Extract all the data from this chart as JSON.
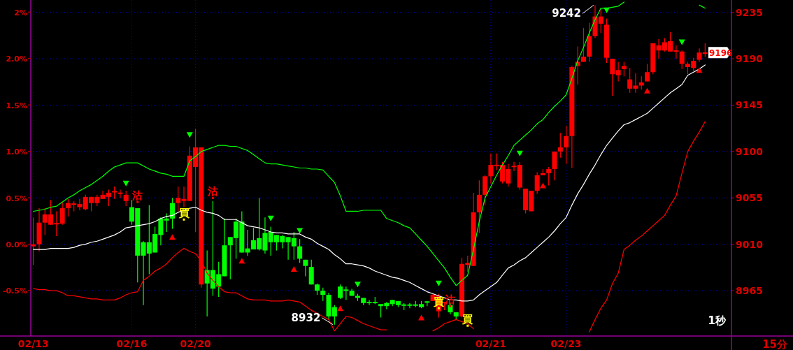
{
  "chart_data": {
    "type": "candlestick",
    "categories": [
      "02/13",
      null,
      null,
      null,
      null,
      null,
      null,
      null,
      null,
      null,
      null,
      null,
      null,
      null,
      null,
      null,
      null,
      "02/16",
      null,
      null,
      null,
      null,
      null,
      null,
      null,
      null,
      null,
      null,
      "02/20",
      null,
      null,
      null,
      null,
      null,
      null,
      null,
      null,
      null,
      null,
      null,
      null,
      null,
      null,
      null,
      null,
      null,
      null,
      null,
      null,
      null,
      null,
      null,
      null,
      null,
      null,
      null,
      null,
      null,
      null,
      null,
      null,
      null,
      null,
      null,
      null,
      null,
      null,
      null,
      null,
      null,
      null,
      null,
      null,
      null,
      null,
      null,
      null,
      null,
      null,
      "02/21",
      null,
      null,
      null,
      null,
      null,
      null,
      null,
      null,
      null,
      null,
      null,
      null,
      "02/23",
      null,
      null,
      null,
      null,
      null,
      null,
      null,
      null,
      null,
      null,
      null,
      null,
      null,
      null,
      null,
      null,
      null,
      null,
      null,
      null,
      null,
      null,
      null,
      null
    ],
    "ohlc": [
      [
        9008,
        9036,
        8990,
        9010
      ],
      [
        9010,
        9045,
        9003,
        9031
      ],
      [
        9031,
        9045,
        9019,
        9039
      ],
      [
        9029,
        9053,
        9029,
        9039
      ],
      [
        9030,
        9042,
        9018,
        9030
      ],
      [
        9030,
        9051,
        9029,
        9045
      ],
      [
        9045,
        9054,
        9037,
        9050
      ],
      [
        9049,
        9052,
        9042,
        9049
      ],
      [
        9046,
        9054,
        9043,
        9049
      ],
      [
        9044,
        9058,
        9043,
        9056
      ],
      [
        9050,
        9056,
        9042,
        9056
      ],
      [
        9050,
        9058,
        9047,
        9056
      ],
      [
        9054,
        9062,
        9054,
        9058
      ],
      [
        9056,
        9063,
        9047,
        9060
      ],
      [
        9061,
        9066,
        9054,
        9061
      ],
      [
        9059,
        9063,
        9055,
        9060
      ],
      [
        9052,
        9062,
        9047,
        9058
      ],
      [
        9046,
        9053,
        9029,
        9032
      ],
      [
        9045,
        9045,
        8973,
        8999
      ],
      [
        9012,
        9013,
        8951,
        8999
      ],
      [
        9012,
        9048,
        8981,
        9001
      ],
      [
        9020,
        9027,
        9002,
        9002
      ],
      [
        9035,
        9036,
        9009,
        9019
      ],
      [
        9035,
        9040,
        9022,
        9033
      ],
      [
        9050,
        9055,
        9025,
        9035
      ],
      [
        9050,
        9066,
        9042,
        9055
      ],
      [
        9052,
        9066,
        9046,
        9054
      ],
      [
        9052,
        9105,
        9052,
        9096
      ],
      [
        9085,
        9122,
        9022,
        9104
      ],
      [
        8971,
        9104,
        8968,
        9104
      ],
      [
        8985,
        9004,
        8940,
        8972
      ],
      [
        8985,
        9052,
        8960,
        8967
      ],
      [
        8981,
        8993,
        8959,
        8969
      ],
      [
        9009,
        9035,
        8979,
        8979
      ],
      [
        9017,
        9017,
        8976,
        9009
      ],
      [
        9032,
        9035,
        8996,
        9016
      ],
      [
        9032,
        9042,
        9002,
        9002
      ],
      [
        9006,
        9024,
        8999,
        9002
      ],
      [
        9014,
        9026,
        9005,
        9005
      ],
      [
        9016,
        9055,
        9004,
        9005
      ],
      [
        9021,
        9036,
        9001,
        9004
      ],
      [
        9022,
        9027,
        8999,
        9012
      ],
      [
        9019,
        9019,
        9004,
        9012
      ],
      [
        9018,
        9019,
        9006,
        9012
      ],
      [
        9017,
        9017,
        8995,
        9012
      ],
      [
        9016,
        9022,
        8995,
        9008
      ],
      [
        9008,
        9015,
        8992,
        8996
      ],
      [
        8995,
        8995,
        8979,
        8989
      ],
      [
        8988,
        8995,
        8971,
        8971
      ],
      [
        8971,
        8972,
        8961,
        8965
      ],
      [
        8965,
        8968,
        8955,
        8961
      ],
      [
        8961,
        8963,
        8937,
        8940
      ],
      [
        8949,
        8951,
        8932,
        8940
      ],
      [
        8969,
        8971,
        8957,
        8958
      ],
      [
        8966,
        8969,
        8956,
        8965
      ],
      [
        8965,
        8967,
        8960,
        8960
      ],
      [
        8960,
        8962,
        8955,
        8958
      ],
      [
        8958,
        8958,
        8951,
        8953
      ],
      [
        8954,
        8956,
        8951,
        8953
      ],
      [
        8954,
        8959,
        8952,
        8953
      ],
      [
        8952,
        8952,
        8939,
        8950
      ],
      [
        8953,
        8954,
        8947,
        8950
      ],
      [
        8956,
        8956,
        8950,
        8952
      ],
      [
        8955,
        8955,
        8949,
        8951
      ],
      [
        8951,
        8953,
        8946,
        8951
      ],
      [
        8951,
        8953,
        8948,
        8951
      ],
      [
        8951,
        8955,
        8949,
        8951
      ],
      [
        8952,
        8955,
        8948,
        8949
      ],
      [
        8954,
        8955,
        8950,
        8954
      ],
      [
        8955,
        8962,
        8955,
        8961
      ],
      [
        8945,
        8962,
        8939,
        8960
      ],
      [
        8953,
        8954,
        8946,
        8954
      ],
      [
        8951,
        8953,
        8942,
        8944
      ],
      [
        8944,
        8944,
        8937,
        8940
      ],
      [
        8940,
        8997,
        8939,
        8991
      ],
      [
        8990,
        8999,
        8983,
        8992
      ],
      [
        8989,
        9060,
        8989,
        9041
      ],
      [
        9041,
        9072,
        9021,
        9058
      ],
      [
        9058,
        9077,
        9048,
        9076
      ],
      [
        9076,
        9098,
        9069,
        9087
      ],
      [
        9086,
        9098,
        9082,
        9087
      ],
      [
        9071,
        9090,
        9069,
        9087
      ],
      [
        9069,
        9088,
        9066,
        9083
      ],
      [
        9085,
        9090,
        9081,
        9086
      ],
      [
        9065,
        9090,
        9063,
        9087
      ],
      [
        9043,
        9064,
        9040,
        9064
      ],
      [
        9042,
        9062,
        9042,
        9062
      ],
      [
        9062,
        9080,
        9059,
        9077
      ],
      [
        9077,
        9083,
        9077,
        9079
      ],
      [
        9079,
        9085,
        9067,
        9083
      ],
      [
        9083,
        9100,
        9072,
        9100
      ],
      [
        9100,
        9118,
        9094,
        9104
      ],
      [
        9104,
        9125,
        9088,
        9115
      ],
      [
        9115,
        9183,
        9084,
        9182
      ],
      [
        9183,
        9202,
        9165,
        9187
      ],
      [
        9187,
        9220,
        9187,
        9192
      ],
      [
        9192,
        9225,
        9187,
        9212
      ],
      [
        9212,
        9242,
        9210,
        9231
      ],
      [
        9224,
        9238,
        9215,
        9231
      ],
      [
        9191,
        9229,
        9186,
        9223
      ],
      [
        9175,
        9190,
        9154,
        9190
      ],
      [
        9174,
        9187,
        9168,
        9179
      ],
      [
        9180,
        9187,
        9173,
        9183
      ],
      [
        9161,
        9181,
        9157,
        9170
      ],
      [
        9161,
        9176,
        9157,
        9164
      ],
      [
        9164,
        9173,
        9160,
        9167
      ],
      [
        9168,
        9185,
        9168,
        9177
      ],
      [
        9177,
        9205,
        9175,
        9205
      ],
      [
        9198,
        9209,
        9190,
        9203
      ],
      [
        9198,
        9210,
        9197,
        9206
      ],
      [
        9197,
        9216,
        9197,
        9207
      ],
      [
        9197,
        9203,
        9190,
        9198
      ],
      [
        9185,
        9198,
        9180,
        9197
      ],
      [
        9182,
        9187,
        9175,
        9185
      ],
      [
        9181,
        9191,
        9178,
        9188
      ],
      [
        9189,
        9200,
        9187,
        9196
      ],
      [
        9195,
        9205,
        9192,
        9196
      ]
    ],
    "colors": [
      "#ff0000",
      "#ff0000",
      "#ff0000",
      "#ff0000",
      "#ff0000",
      "#ff0000",
      "#ff0000",
      "#ff0000",
      "#ff0000",
      "#ff0000",
      "#ff0000",
      "#ff0000",
      "#ff0000",
      "#ff0000",
      "#ff0000",
      "#ff0000",
      "#ff0000",
      "#00ff00",
      "#00ff00",
      "#00ff00",
      "#00ff00",
      "#00ff00",
      "#00ff00",
      "#00ff00",
      "#00ff00",
      "#ff0000",
      "#ff0000",
      "#ff0000",
      "#ff0000",
      "#ff0000",
      "#00ff00",
      "#00ff00",
      "#00ff00",
      "#00ff00",
      "#00ff00",
      "#00ff00",
      "#00ff00",
      "#00ff00",
      "#00ff00",
      "#00ff00",
      "#00ff00",
      "#00ff00",
      "#00ff00",
      "#00ff00",
      "#00ff00",
      "#00ff00",
      "#00ff00",
      "#00ff00",
      "#00ff00",
      "#00ff00",
      "#00ff00",
      "#00ff00",
      "#00ff00",
      "#00ff00",
      "#00ff00",
      "#00ff00",
      "#00ff00",
      "#00ff00",
      "#00ff00",
      "#00ff00",
      "#00ff00",
      "#00ff00",
      "#00ff00",
      "#00ff00",
      "#00ff00",
      "#00ff00",
      "#00ff00",
      "#00ff00",
      "#00ff00",
      "#ff0000",
      "#ff0000",
      "#ff0000",
      "#00ff00",
      "#00ff00",
      "#ff0000",
      "#ff0000",
      "#ff0000",
      "#ff0000",
      "#ff0000",
      "#ff0000",
      "#ff0000",
      "#ff0000",
      "#ff0000",
      "#ff0000",
      "#ff0000",
      "#ff0000",
      "#ff0000",
      "#ff0000",
      "#ff0000",
      "#ff0000",
      "#ff0000",
      "#ff0000",
      "#ff0000",
      "#ff0000",
      "#ff0000",
      "#ff0000",
      "#ff0000",
      "#ff0000",
      "#ff0000",
      "#ff0000",
      "#ff0000",
      "#ff0000",
      "#ff0000",
      "#ff0000",
      "#ff0000",
      "#ff0000",
      "#ff0000",
      "#ff0000",
      "#ff0000",
      "#ff0000",
      "#ff0000",
      "#ff0000",
      "#ff0000",
      "#ff0000",
      "#ff0000",
      "#ff0000",
      "#ff0000"
    ],
    "series": [
      {
        "type": "line",
        "color": "#00ff00",
        "values": [
          9042,
          9043,
          9044,
          9046,
          9047,
          9051,
          9055,
          9058,
          9062,
          9065,
          9068,
          9072,
          9076,
          9081,
          9085,
          9087,
          9089,
          9089,
          9089,
          9086,
          9083,
          9081,
          9079,
          9078,
          9076,
          9076,
          9076,
          9091,
          9095,
          9100,
          9102,
          9104,
          9106,
          9106,
          9105,
          9105,
          9103,
          9101,
          9097,
          9093,
          9089,
          9088,
          9088,
          9087,
          9086,
          9085,
          9084,
          9084,
          9083,
          9083,
          9082,
          9076,
          9070,
          9057,
          9042,
          9042,
          9042,
          9043,
          9043,
          9043,
          9043,
          9035,
          9033,
          9031,
          9028,
          9026,
          9020,
          9014,
          9008,
          9001,
          8994,
          8987,
          8978,
          8970,
          8975,
          8980,
          9005,
          9032,
          9055,
          9066,
          9077,
          9087,
          9096,
          9106,
          9111,
          9116,
          9121,
          9127,
          9131,
          9138,
          9144,
          9149,
          9155,
          9171,
          9188,
          9201,
          9215,
          9228,
          9239,
          9239,
          9240,
          9241,
          9245,
          null,
          null,
          null,
          null,
          null,
          null,
          null,
          null,
          null,
          null,
          null,
          null,
          9242,
          9239
        ]
      },
      {
        "type": "line",
        "color": "#ffffff",
        "values": [
          9005,
          9005,
          9005,
          9006,
          9006,
          9006,
          9006,
          9007,
          9009,
          9010,
          9012,
          9013,
          9015,
          9017,
          9019,
          9022,
          9026,
          9027,
          9028,
          9029,
          9030,
          9032,
          9035,
          9037,
          9038,
          9041,
          9043,
          9045,
          9046,
          9043,
          9041,
          9040,
          9038,
          9034,
          9034,
          9034,
          9031,
          9028,
          9027,
          9026,
          9024,
          9022,
          9021,
          9021,
          9020,
          9020,
          9020,
          9017,
          9015,
          9011,
          9008,
          9005,
          9000,
          8996,
          8991,
          8991,
          8990,
          8989,
          8987,
          8984,
          8982,
          8980,
          8978,
          8977,
          8975,
          8973,
          8970,
          8967,
          8964,
          8962,
          8960,
          8958,
          8956,
          8956,
          8955,
          8955,
          8956,
          8961,
          8965,
          8969,
          8973,
          8980,
          8987,
          8990,
          8994,
          8997,
          9002,
          9007,
          9012,
          9017,
          9023,
          9030,
          9036,
          9048,
          9059,
          9068,
          9078,
          9087,
          9097,
          9106,
          9113,
          9120,
          9126,
          9128,
          9131,
          9134,
          9137,
          9142,
          9147,
          9152,
          9157,
          9161,
          9165,
          9174,
          9177,
          9180,
          9184
        ]
      },
      {
        "type": "line",
        "color": "#ff0000",
        "values": [
          8967,
          8966,
          8966,
          8965,
          8965,
          8963,
          8960,
          8960,
          8959,
          8958,
          8957,
          8957,
          8956,
          8956,
          8956,
          8958,
          8961,
          8963,
          8964,
          8975,
          8979,
          8984,
          8987,
          8991,
          8997,
          9002,
          9006,
          9003,
          9001,
          8994,
          8982,
          8975,
          8969,
          8964,
          8963,
          8963,
          8960,
          8957,
          8956,
          8956,
          8956,
          8955,
          8955,
          8955,
          8956,
          8955,
          8954,
          8950,
          8946,
          8943,
          8940,
          8937,
          8926,
          8933,
          8940,
          8939,
          8936,
          8933,
          8931,
          8929,
          8927,
          8927,
          null,
          null,
          null,
          null,
          null,
          null,
          null,
          8926,
          8929,
          8933,
          8935,
          8937,
          8935,
          8933,
          8928,
          null,
          null,
          null,
          null,
          null,
          null,
          null,
          null,
          null,
          null,
          null,
          null,
          null,
          null,
          null,
          null,
          null,
          null,
          null,
          8925,
          8937,
          8948,
          8956,
          8972,
          8982,
          9005,
          9009,
          9014,
          9018,
          9023,
          9028,
          9033,
          9038,
          9048,
          9057,
          9079,
          9100,
          9110,
          9119,
          9129
        ]
      },
      {
        "type": "scatter",
        "color": "#00ff00",
        "marker": "triangle",
        "values": [
          null,
          null,
          null,
          null,
          null,
          null,
          null,
          null,
          null,
          null,
          null,
          null,
          null,
          null,
          null,
          null,
          9069,
          null,
          null,
          null,
          null,
          null,
          null,
          null,
          null,
          null,
          null,
          9116,
          null,
          null,
          null,
          null,
          null,
          null,
          null,
          null,
          null,
          null,
          null,
          null,
          null,
          9035,
          null,
          null,
          null,
          null,
          9023,
          null,
          null,
          null,
          null,
          null,
          null,
          null,
          null,
          null,
          8971,
          null,
          null,
          null,
          null,
          null,
          null,
          null,
          null,
          null,
          null,
          null,
          null,
          null,
          8972,
          null,
          null,
          null,
          null,
          null,
          null,
          null,
          null,
          null,
          null,
          null,
          null,
          null,
          9098,
          null,
          null,
          null,
          null,
          null,
          null,
          null,
          null,
          null,
          null,
          null,
          null,
          null,
          null,
          9237,
          null,
          null,
          null,
          null,
          null,
          null,
          null,
          null,
          null,
          null,
          null,
          null,
          9206,
          null,
          null,
          null,
          null
        ]
      },
      {
        "type": "scatter",
        "color": "#ff0000",
        "marker": "triangle",
        "values": [
          null,
          null,
          null,
          null,
          null,
          null,
          null,
          null,
          null,
          null,
          null,
          null,
          null,
          null,
          null,
          null,
          null,
          null,
          null,
          null,
          null,
          null,
          null,
          null,
          9017,
          null,
          null,
          null,
          null,
          null,
          null,
          null,
          null,
          null,
          null,
          null,
          8994,
          null,
          null,
          null,
          null,
          null,
          null,
          null,
          null,
          8986,
          null,
          null,
          null,
          null,
          null,
          null,
          null,
          8948,
          null,
          null,
          null,
          null,
          null,
          null,
          null,
          null,
          null,
          null,
          null,
          null,
          null,
          8939,
          null,
          null,
          null,
          null,
          null,
          null,
          null,
          null,
          null,
          null,
          null,
          null,
          null,
          null,
          null,
          null,
          null,
          null,
          null,
          null,
          9067,
          null,
          null,
          null,
          null,
          null,
          null,
          null,
          null,
          null,
          null,
          null,
          null,
          null,
          null,
          null,
          null,
          null,
          9159,
          null,
          null,
          null,
          null,
          null,
          null,
          null,
          null,
          9179,
          null
        ]
      },
      {
        "type": "scatter",
        "color": "#ff0000",
        "marker": "square",
        "values": [
          null,
          null,
          null,
          null,
          null,
          null,
          null,
          null,
          null,
          null,
          null,
          null,
          null,
          null,
          null,
          null,
          null,
          null,
          9051,
          null,
          null,
          null,
          null,
          null,
          null,
          null,
          null,
          null,
          null,
          null,
          null,
          9055,
          null,
          null,
          null,
          null,
          null,
          null,
          null,
          null,
          null,
          null,
          null,
          null,
          null,
          null,
          null,
          null,
          null,
          null,
          null,
          null,
          null,
          null,
          null,
          null,
          null,
          null,
          null,
          null,
          null,
          null,
          null,
          null,
          null,
          null,
          null,
          null,
          null,
          null,
          null,
          null,
          8950,
          null,
          null,
          null,
          null,
          null,
          null,
          null,
          null,
          null,
          null,
          null,
          null,
          null,
          null,
          null,
          null,
          null,
          null,
          null,
          null,
          null,
          null,
          null,
          null,
          null,
          null,
          null,
          null,
          null,
          null,
          null,
          null,
          null,
          null,
          null,
          null,
          null,
          null,
          null,
          null,
          null,
          null,
          null,
          null
        ],
        "value_labels": [
          null,
          null,
          null,
          null,
          null,
          null,
          null,
          null,
          null,
          null,
          null,
          null,
          null,
          null,
          null,
          null,
          null,
          null,
          "沽",
          null,
          null,
          null,
          null,
          null,
          null,
          null,
          null,
          null,
          null,
          null,
          null,
          "沽",
          null,
          null,
          null,
          null,
          null,
          null,
          null,
          null,
          null,
          null,
          null,
          null,
          null,
          null,
          null,
          null,
          null,
          null,
          null,
          null,
          null,
          null,
          null,
          null,
          null,
          null,
          null,
          null,
          null,
          null,
          null,
          null,
          null,
          null,
          null,
          null,
          null,
          null,
          null,
          null,
          "沽",
          null,
          null,
          null,
          null,
          null,
          null,
          null,
          null,
          null,
          null,
          null,
          null,
          null,
          null,
          null,
          null,
          null,
          null,
          null,
          null,
          null,
          null,
          null,
          null,
          null,
          null,
          null,
          null,
          null,
          null,
          null,
          null,
          null,
          null,
          null,
          null,
          null,
          null,
          null,
          null,
          null,
          null,
          null,
          null
        ]
      },
      {
        "type": "scatter",
        "color": "#ffff00",
        "marker": "square",
        "values": [
          null,
          null,
          null,
          null,
          null,
          null,
          null,
          null,
          null,
          null,
          null,
          null,
          null,
          null,
          null,
          null,
          null,
          null,
          null,
          null,
          null,
          null,
          null,
          null,
          null,
          null,
          9034,
          null,
          null,
          null,
          null,
          null,
          null,
          null,
          null,
          null,
          null,
          null,
          null,
          null,
          null,
          null,
          null,
          null,
          null,
          null,
          null,
          null,
          null,
          null,
          null,
          null,
          null,
          null,
          null,
          null,
          null,
          null,
          null,
          null,
          null,
          null,
          null,
          null,
          null,
          null,
          null,
          null,
          null,
          null,
          8948,
          null,
          null,
          null,
          null,
          8931,
          null,
          null,
          null,
          null,
          null,
          null,
          null,
          null,
          null,
          null,
          null,
          null,
          null,
          null,
          null,
          null,
          null,
          null,
          null,
          null,
          null,
          null,
          null,
          null,
          null,
          null,
          null,
          null,
          null,
          null,
          null,
          null,
          null,
          null,
          null,
          null,
          null,
          null,
          null,
          null,
          null
        ],
        "value_labels": [
          null,
          null,
          null,
          null,
          null,
          null,
          null,
          null,
          null,
          null,
          null,
          null,
          null,
          null,
          null,
          null,
          null,
          null,
          null,
          null,
          null,
          null,
          null,
          null,
          null,
          null,
          "買",
          null,
          null,
          null,
          null,
          null,
          null,
          null,
          null,
          null,
          null,
          null,
          null,
          null,
          null,
          null,
          null,
          null,
          null,
          null,
          null,
          null,
          null,
          null,
          null,
          null,
          null,
          null,
          null,
          null,
          null,
          null,
          null,
          null,
          null,
          null,
          null,
          null,
          null,
          null,
          null,
          null,
          null,
          null,
          "買",
          null,
          null,
          null,
          null,
          "買",
          null,
          null,
          null,
          null,
          null,
          null,
          null,
          null,
          null,
          null,
          null,
          null,
          null,
          null,
          null,
          null,
          null,
          null,
          null,
          null,
          null,
          null,
          null,
          null,
          null,
          null,
          null,
          null,
          null,
          null,
          null,
          null,
          null,
          null,
          null,
          null,
          null,
          null,
          null,
          null,
          null
        ]
      }
    ],
    "ylim": [
      8921,
      9247
    ],
    "yticks": [
      9235,
      9190,
      9145,
      9100,
      9055,
      9010,
      8965
    ],
    "y2lim": [
      -0.99,
      2.63
    ],
    "y2ticks": [
      {
        "value": 2.5,
        "label": "2%"
      },
      {
        "value": 2,
        "label": "2.0%"
      },
      {
        "value": 1.5,
        "label": "1.5%"
      },
      {
        "value": 1,
        "label": "1.0%"
      },
      {
        "value": 0.5,
        "label": "0.5%"
      },
      {
        "value": 0,
        "label": "0.0%"
      },
      {
        "value": -0.5,
        "label": "-0.5%"
      }
    ],
    "grid": true,
    "annotations": [
      "9242",
      "8932",
      "9196",
      "1秒",
      "15分"
    ]
  }
}
